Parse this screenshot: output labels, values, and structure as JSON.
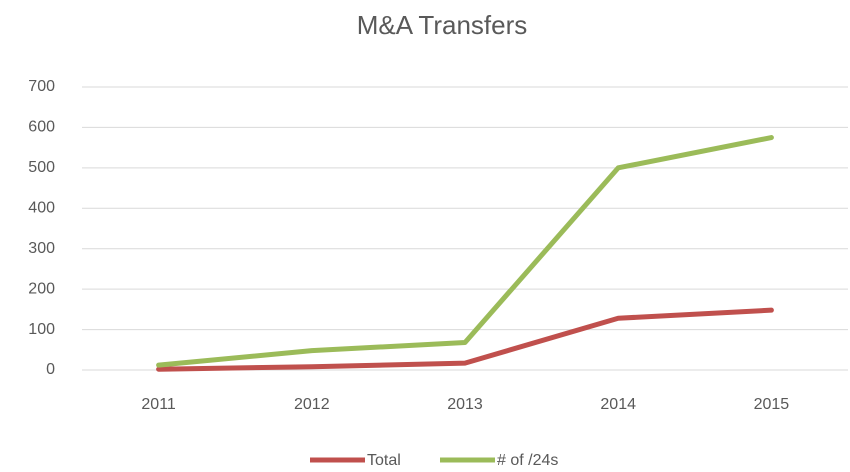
{
  "chart_data": {
    "type": "line",
    "title": "M&A Transfers",
    "categories": [
      "2011",
      "2012",
      "2013",
      "2014",
      "2015"
    ],
    "series": [
      {
        "name": "Total",
        "color": "#c0504d",
        "values": [
          2,
          8,
          17,
          128,
          148
        ]
      },
      {
        "name": "# of /24s",
        "color": "#9bbb59",
        "values": [
          12,
          48,
          68,
          500,
          575
        ]
      }
    ],
    "ylim": [
      0,
      700
    ],
    "yticks": [
      0,
      100,
      200,
      300,
      400,
      500,
      600,
      700
    ],
    "grid": true,
    "legend": "bottom"
  }
}
